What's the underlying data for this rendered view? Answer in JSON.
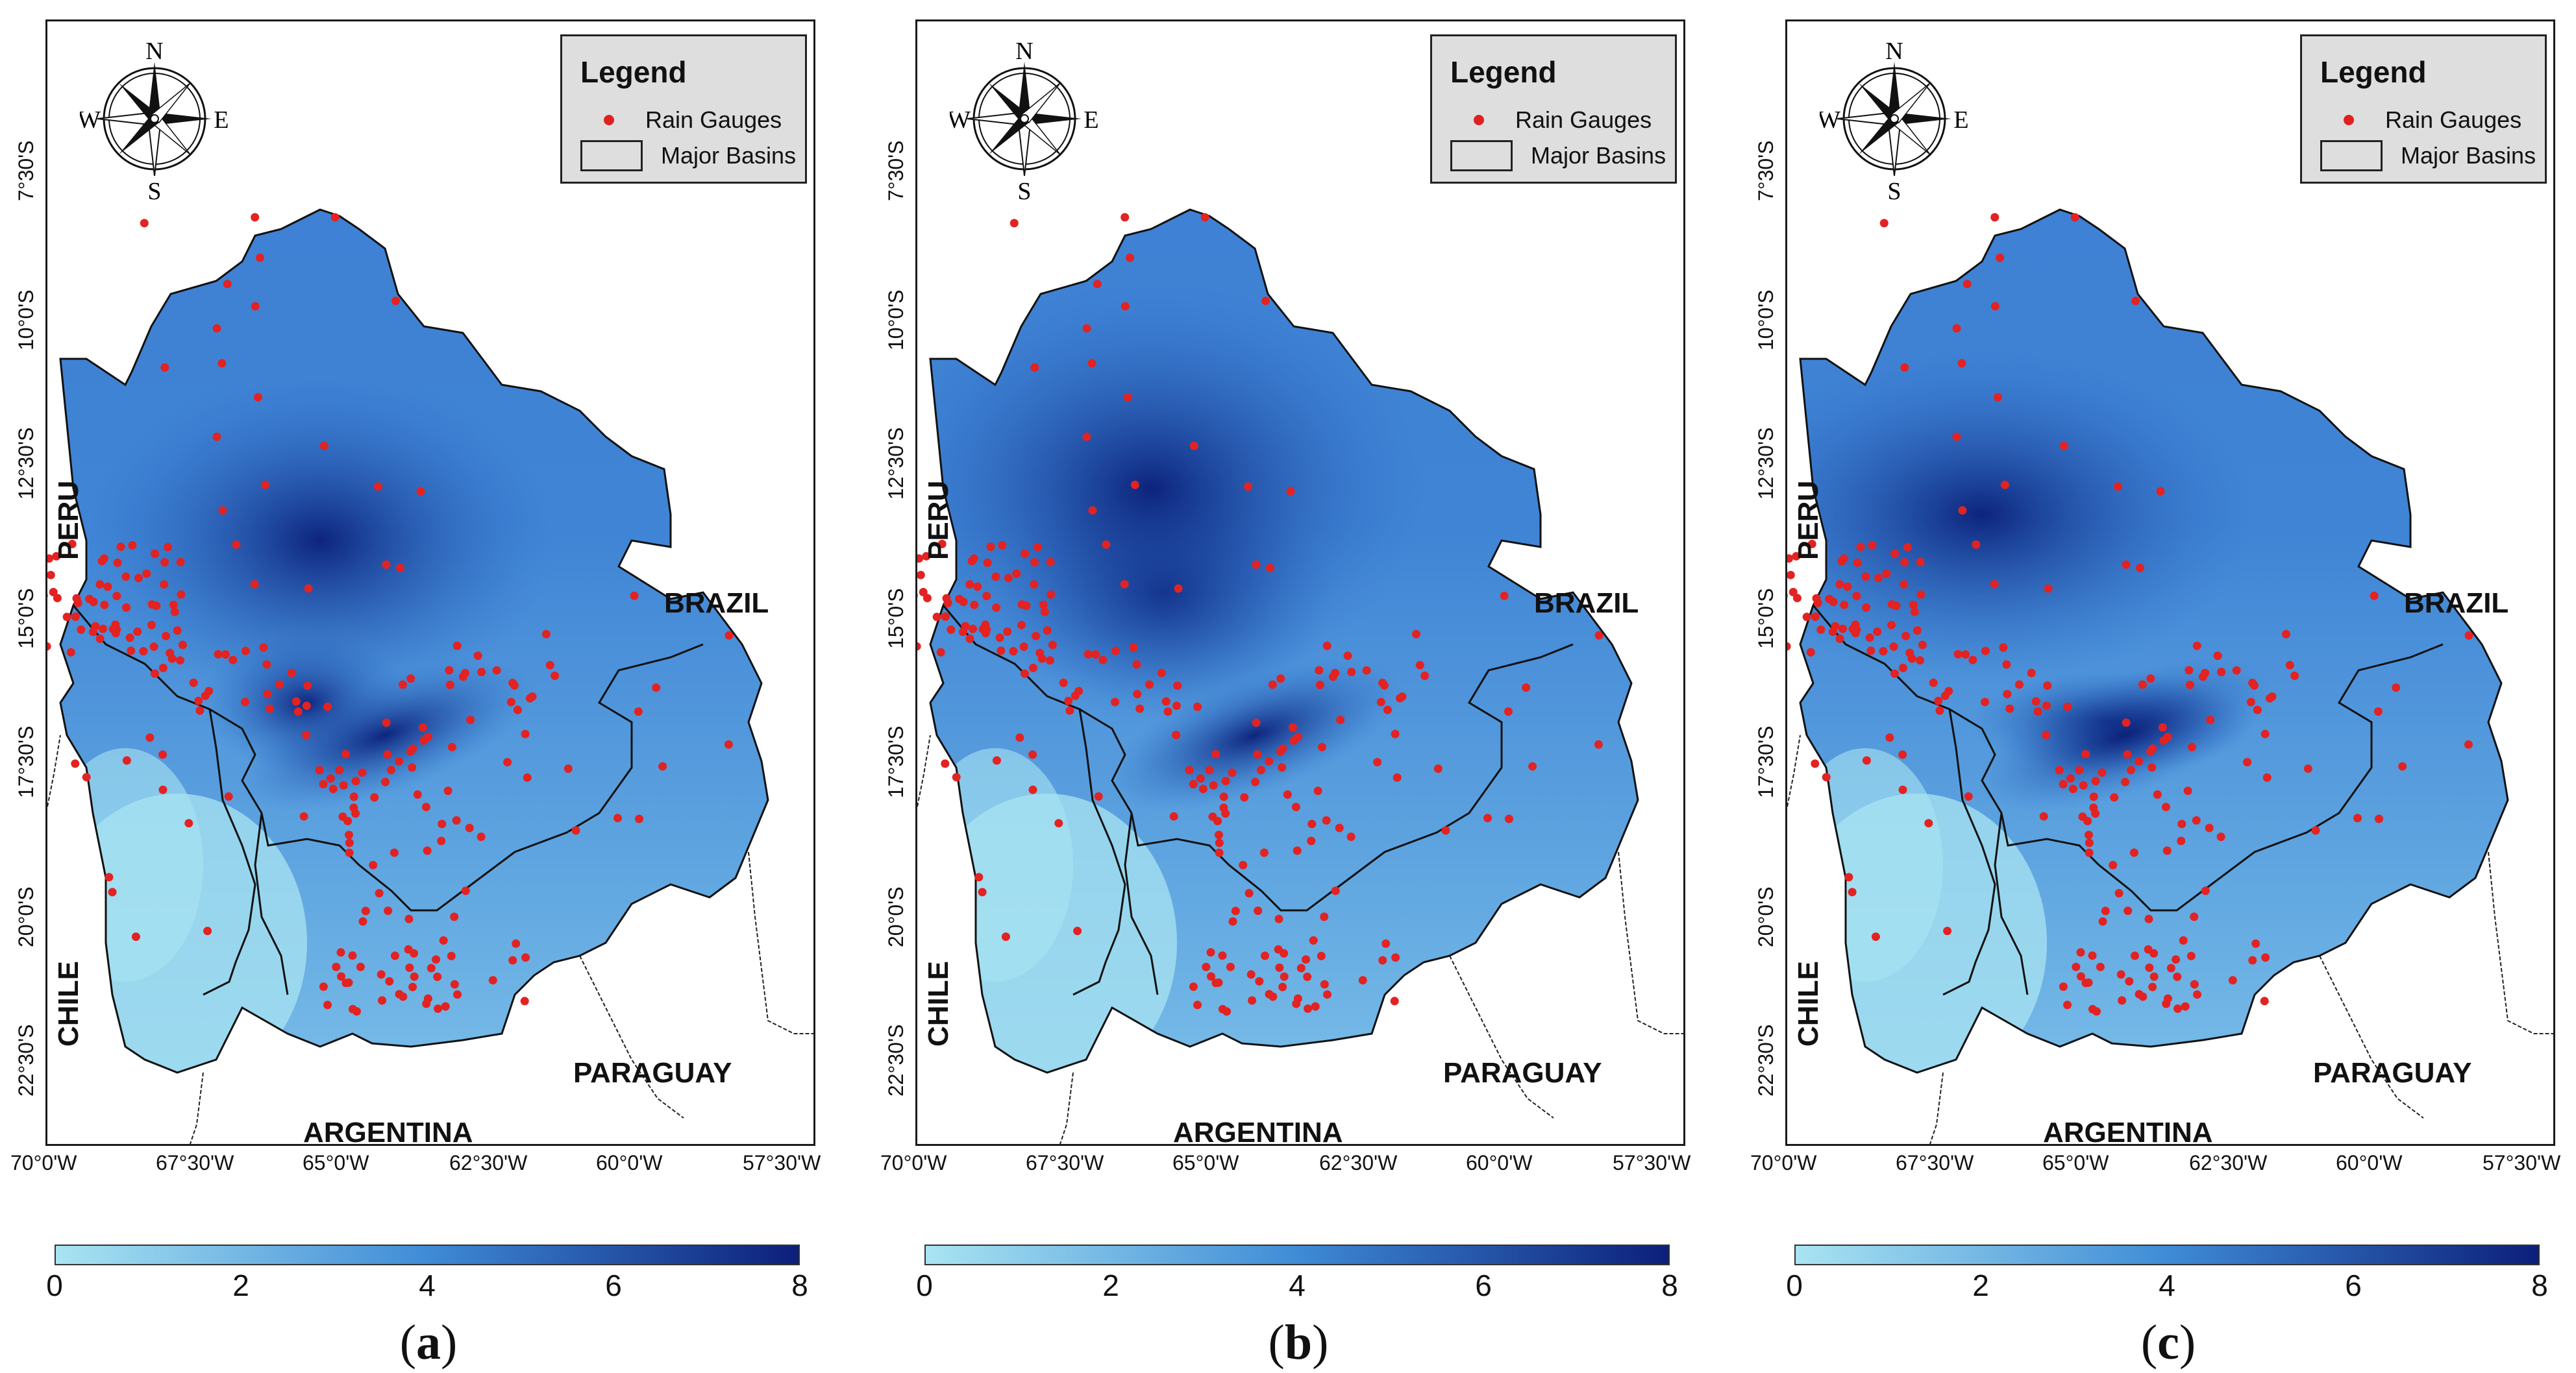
{
  "legend": {
    "title": "Legend",
    "gauges": "Rain Gauges",
    "basins": "Major Basins"
  },
  "compass": {
    "n": "N",
    "e": "E",
    "s": "S",
    "w": "W"
  },
  "countries": {
    "peru": "PERU",
    "brazil": "BRAZIL",
    "chile": "CHILE",
    "paraguay": "PARAGUAY",
    "argentina": "ARGENTINA"
  },
  "lat_ticks": [
    "7°30'S",
    "10°0'S",
    "12°30'S",
    "15°0'S",
    "17°30'S",
    "20°0'S",
    "22°30'S"
  ],
  "lon_ticks": [
    "70°0'W",
    "67°30'W",
    "65°0'W",
    "62°30'W",
    "60°0'W",
    "57°30'W"
  ],
  "colorbar": {
    "ticks": [
      "0",
      "2",
      "4",
      "6",
      "8"
    ],
    "min": 0,
    "max": 8,
    "colors": [
      "#a9e4f2",
      "#3f8bd6",
      "#0c1f7a"
    ]
  },
  "panels": [
    {
      "label_open": "(",
      "label_letter": "a",
      "label_close": ")"
    },
    {
      "label_open": "(",
      "label_letter": "b",
      "label_close": ")"
    },
    {
      "label_open": "(",
      "label_letter": "c",
      "label_close": ")"
    }
  ]
}
